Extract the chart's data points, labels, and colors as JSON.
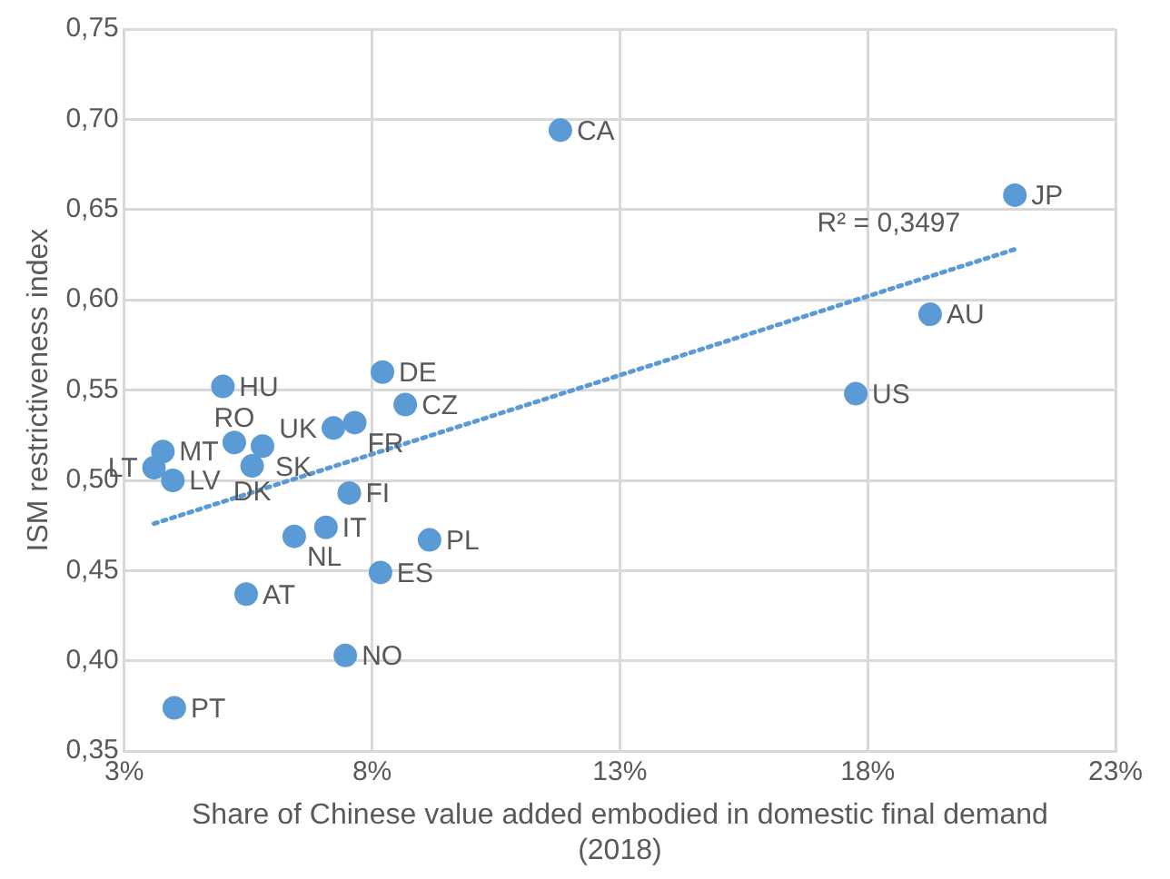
{
  "chart_data": {
    "type": "scatter",
    "xlabel": "Share of Chinese value added embodied in domestic final demand (2018)",
    "ylabel": "ISM restrictiveness index",
    "xlim": [
      3,
      23
    ],
    "xticks": [
      {
        "value": 3,
        "label": "3%"
      },
      {
        "value": 8,
        "label": "8%"
      },
      {
        "value": 13,
        "label": "13%"
      },
      {
        "value": 18,
        "label": "18%"
      },
      {
        "value": 23,
        "label": "23%"
      }
    ],
    "ylim": [
      0.35,
      0.75
    ],
    "yticks": [
      {
        "value": 0.35,
        "label": "0,35"
      },
      {
        "value": 0.4,
        "label": "0,40"
      },
      {
        "value": 0.45,
        "label": "0,45"
      },
      {
        "value": 0.5,
        "label": "0,50"
      },
      {
        "value": 0.55,
        "label": "0,55"
      },
      {
        "value": 0.6,
        "label": "0,60"
      },
      {
        "value": 0.65,
        "label": "0,65"
      },
      {
        "value": 0.7,
        "label": "0,70"
      },
      {
        "value": 0.75,
        "label": "0,75"
      }
    ],
    "grid": true,
    "legend": false,
    "marker": "circle",
    "annotations": [
      "R² = 0,3497"
    ],
    "series": [
      {
        "color": "#5b9bd5",
        "x": [
          11.8,
          20.97,
          19.26,
          17.76,
          8.21,
          8.67,
          7.65,
          7.22,
          4.99,
          3.78,
          3.6,
          3.98,
          5.22,
          5.79,
          5.58,
          7.54,
          6.43,
          7.07,
          9.16,
          8.17,
          5.46,
          7.46,
          4.01
        ],
        "values": [
          0.694,
          0.658,
          0.592,
          0.548,
          0.56,
          0.542,
          0.532,
          0.529,
          0.552,
          0.516,
          0.507,
          0.5,
          0.521,
          0.519,
          0.508,
          0.493,
          0.469,
          0.474,
          0.467,
          0.449,
          0.437,
          0.403,
          0.374
        ],
        "value_labels": [
          "CA",
          "JP",
          "AU",
          "US",
          "DE",
          "CZ",
          "FR",
          "UK",
          "HU",
          "MT",
          "LT",
          "LV",
          "RO",
          "SK",
          "DK",
          "FI",
          "NL",
          "IT",
          "PL",
          "ES",
          "AT",
          "NO",
          "PT"
        ]
      },
      {
        "type": "line",
        "color": "#5b9bd5",
        "line_style": "dotted",
        "marker": "none",
        "x": [
          3.6,
          20.97
        ],
        "values": [
          0.476,
          0.628
        ]
      }
    ]
  }
}
